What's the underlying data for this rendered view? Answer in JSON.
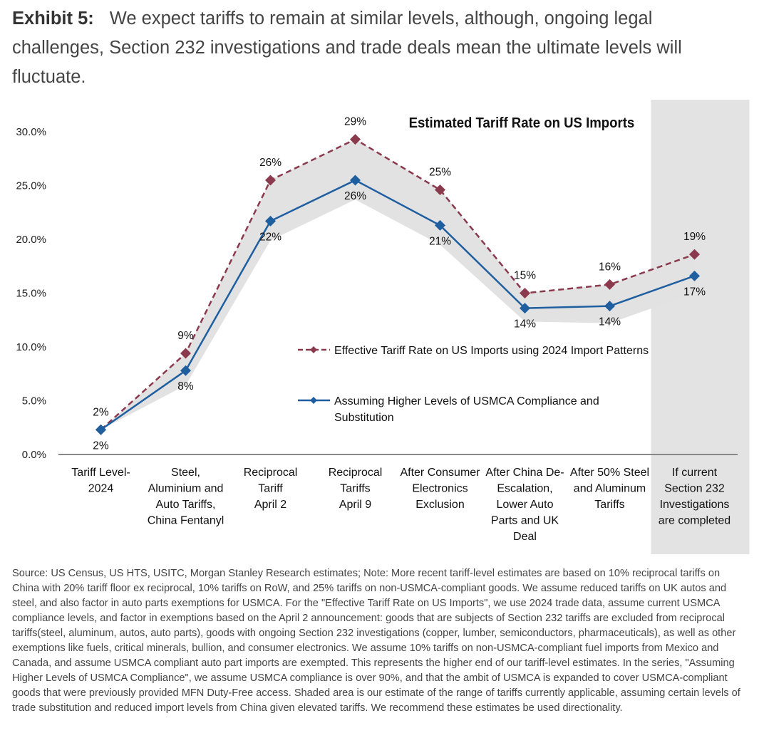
{
  "header": {
    "exhibit_label": "Exhibit 5:",
    "title": "We expect tariffs to remain at similar levels, although, ongoing legal challenges, Section 232 investigations and trade deals mean the ultimate levels will fluctuate."
  },
  "chart_data": {
    "type": "line",
    "title": "Estimated Tariff Rate on US Imports",
    "xlabel": "",
    "ylabel": "",
    "ylim": [
      0,
      30
    ],
    "yticks": [
      "0.0%",
      "5.0%",
      "10.0%",
      "15.0%",
      "20.0%",
      "25.0%",
      "30.0%"
    ],
    "grid": false,
    "legend_position": "center-right",
    "categories": [
      [
        "Tariff Level-",
        "2024"
      ],
      [
        "Steel,",
        "Aluminium and",
        "Auto Tariffs,",
        "China Fentanyl"
      ],
      [
        "Reciprocal",
        "Tariff",
        "April 2"
      ],
      [
        "Reciprocal",
        "Tariffs",
        "April 9"
      ],
      [
        "After Consumer",
        "Electronics",
        "Exclusion"
      ],
      [
        "After China De-",
        "Escalation,",
        "Lower Auto",
        "Parts and UK",
        "Deal"
      ],
      [
        "After 50% Steel",
        "and Aluminum",
        "Tariffs"
      ],
      [
        "If current",
        "Section 232",
        "Investigations",
        "are completed"
      ]
    ],
    "highlighted_category_index": 7,
    "series": [
      {
        "name": "Effective Tariff Rate on US Imports using 2024 Import Patterns",
        "color": "#8B3A4E",
        "style": "dashed",
        "values": [
          2.3,
          9.4,
          25.5,
          29.3,
          24.6,
          15.0,
          15.8,
          18.6
        ],
        "labels": [
          "2%",
          "9%",
          "26%",
          "29%",
          "25%",
          "15%",
          "16%",
          "19%"
        ]
      },
      {
        "name": "Assuming Higher Levels of USMCA Compliance and Substitution",
        "color": "#1F5FA0",
        "style": "solid",
        "values": [
          2.3,
          7.8,
          21.7,
          25.5,
          21.3,
          13.6,
          13.8,
          16.6
        ],
        "labels": [
          "2%",
          "8%",
          "22%",
          "26%",
          "21%",
          "14%",
          "14%",
          "17%"
        ]
      }
    ],
    "shaded_band": "range between series"
  },
  "footnote": "Source: US Census, US HTS, USITC, Morgan Stanley Research estimates; Note: More recent tariff-level estimates are based on 10% reciprocal tariffs on China with 20% tariff floor ex reciprocal, 10% tariffs on RoW, and 25% tariffs on non-USMCA-compliant goods. We assume reduced tariffs on UK autos and steel, and also factor in auto parts exemptions for USMCA. For the \"Effective Tariff Rate on US Imports\", we use 2024 trade data, assume current USMCA compliance levels, and factor in exemptions based on the April 2 announcement: goods that are subjects of Section 232 tariffs are excluded from reciprocal tariffs(steel, aluminum, autos, auto parts), goods with ongoing Section 232 investigations (copper, lumber, semiconductors, pharmaceuticals), as well as other exemptions like fuels, critical minerals, bullion, and consumer electronics. We assume 10% tariffs on non-USMCA-compliant fuel imports from Mexico and Canada, and assume USMCA compliant auto part imports are exempted. This represents the higher end of our tariff-level estimates. In the series, \"Assuming Higher Levels of USMCA Compliance\", we assume USMCA compliance is over 90%, and that the ambit of USMCA is expanded to cover USMCA-compliant goods that were previously provided MFN Duty-Free access. Shaded area is our estimate of the range of tariffs currently applicable, assuming certain levels of trade substitution and reduced import levels from China given elevated tariffs. We recommend these estimates be used directionality."
}
